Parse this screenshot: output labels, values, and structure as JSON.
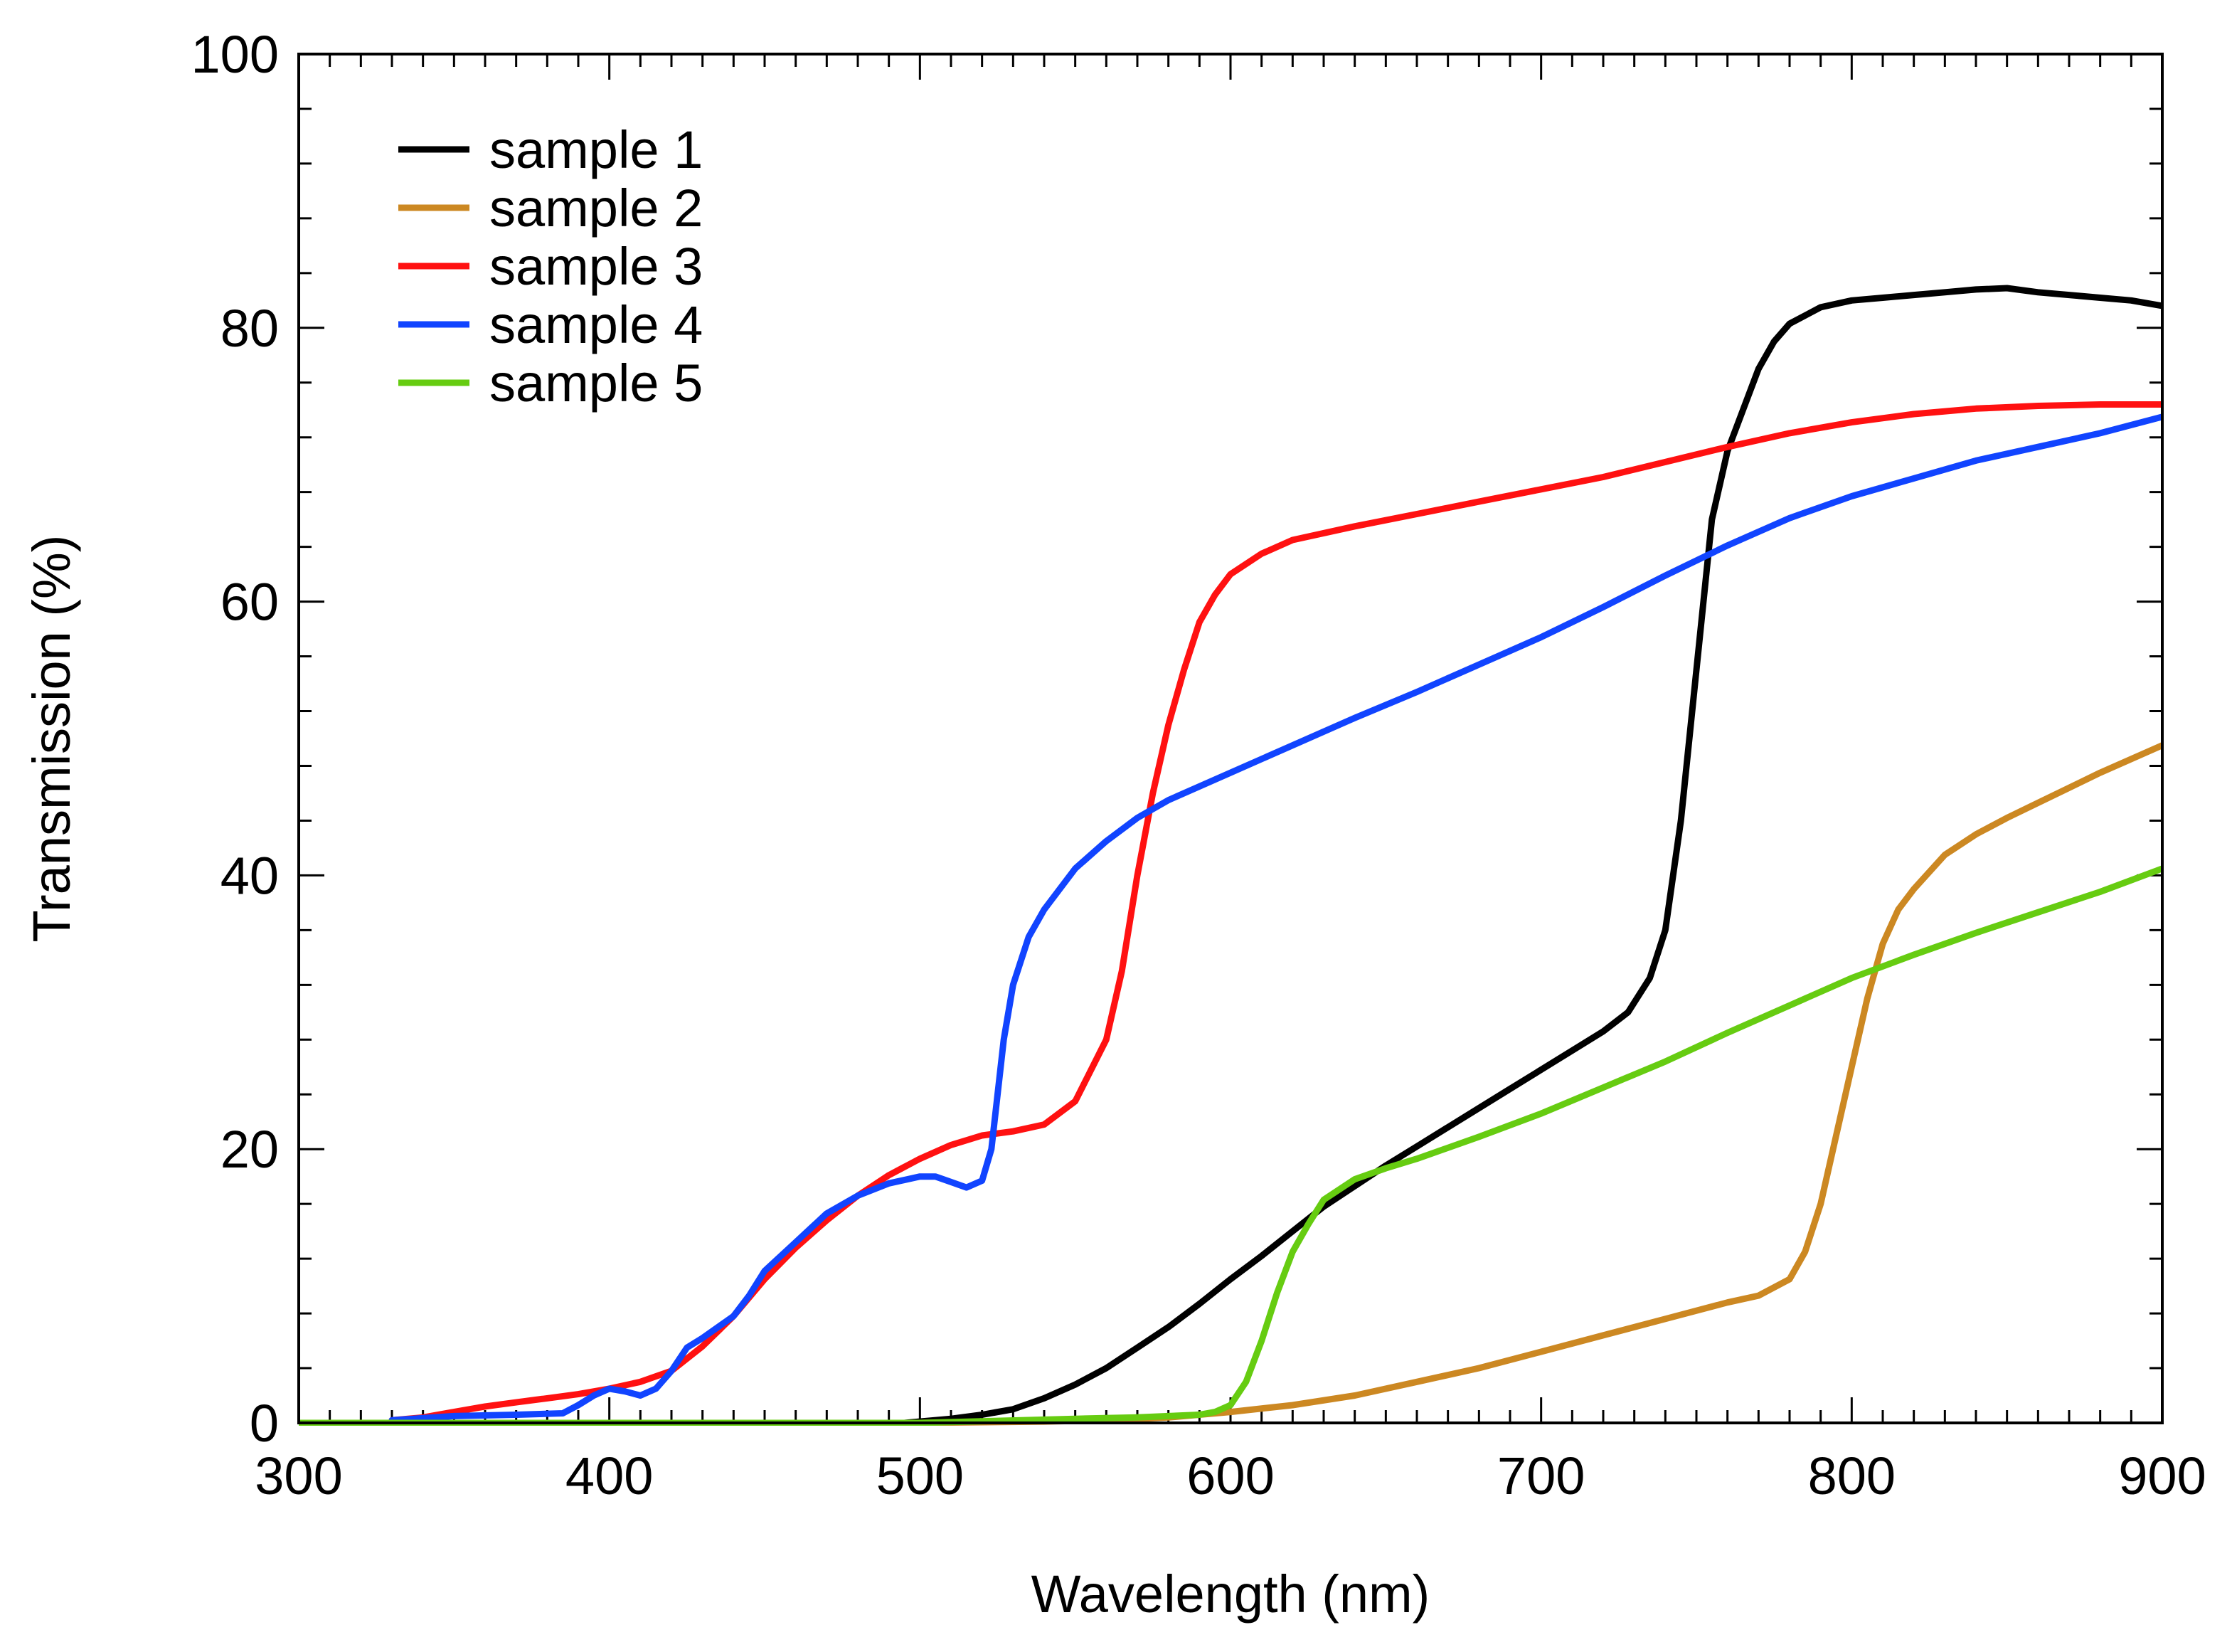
{
  "chart_data": {
    "type": "line",
    "title": "",
    "xlabel": "Wavelength (nm)",
    "ylabel": "Transmission (%)",
    "xlim": [
      300,
      900
    ],
    "ylim": [
      0,
      100
    ],
    "xticks": [
      300,
      400,
      500,
      600,
      700,
      800,
      900
    ],
    "yticks": [
      0,
      20,
      40,
      60,
      80,
      100
    ],
    "xtick_labels": [
      "300",
      "400",
      "500",
      "600",
      "700",
      "800",
      "900"
    ],
    "ytick_labels": [
      "0",
      "20",
      "40",
      "60",
      "80",
      "100"
    ],
    "grid": false,
    "legend_position": "top-left",
    "series": [
      {
        "name": "sample 1",
        "color": "#000000",
        "x": [
          495,
          510,
          520,
          530,
          540,
          550,
          560,
          570,
          580,
          590,
          600,
          610,
          620,
          630,
          640,
          650,
          660,
          670,
          680,
          690,
          700,
          710,
          720,
          728,
          735,
          740,
          745,
          750,
          755,
          760,
          765,
          770,
          775,
          780,
          790,
          800,
          810,
          820,
          830,
          840,
          850,
          860,
          870,
          880,
          890,
          900
        ],
        "y": [
          0,
          0.3,
          0.6,
          1,
          1.8,
          2.8,
          4,
          5.5,
          7,
          8.7,
          10.5,
          12.2,
          14,
          15.8,
          17.3,
          18.8,
          20.2,
          21.6,
          23,
          24.4,
          25.8,
          27.2,
          28.6,
          30,
          32.5,
          36,
          44,
          55,
          66,
          71,
          74,
          77,
          79,
          80.3,
          81.5,
          82,
          82.2,
          82.4,
          82.6,
          82.8,
          82.9,
          82.6,
          82.4,
          82.2,
          82,
          81.6
        ]
      },
      {
        "name": "sample 2",
        "color": "#cc8822",
        "x": [
          300,
          400,
          500,
          540,
          560,
          580,
          600,
          620,
          640,
          660,
          680,
          700,
          720,
          740,
          760,
          770,
          780,
          785,
          790,
          795,
          800,
          805,
          810,
          815,
          820,
          830,
          840,
          850,
          860,
          870,
          880,
          890,
          900
        ],
        "y": [
          0,
          0,
          0,
          0.1,
          0.2,
          0.4,
          0.8,
          1.3,
          2,
          3,
          4,
          5.2,
          6.4,
          7.6,
          8.8,
          9.3,
          10.5,
          12.5,
          16,
          21,
          26,
          31,
          35,
          37.5,
          39,
          41.5,
          43,
          44.2,
          45.3,
          46.4,
          47.5,
          48.5,
          49.5
        ]
      },
      {
        "name": "sample 3",
        "color": "#ff1111",
        "x": [
          330,
          340,
          350,
          360,
          370,
          380,
          390,
          400,
          410,
          420,
          430,
          440,
          450,
          460,
          470,
          480,
          490,
          500,
          510,
          520,
          530,
          540,
          550,
          560,
          565,
          570,
          575,
          580,
          585,
          590,
          595,
          600,
          610,
          620,
          640,
          660,
          680,
          700,
          720,
          740,
          760,
          780,
          800,
          820,
          840,
          860,
          880,
          900
        ],
        "y": [
          0.2,
          0.4,
          0.8,
          1.2,
          1.5,
          1.8,
          2.1,
          2.5,
          3,
          3.8,
          5.6,
          7.8,
          10.5,
          12.8,
          14.8,
          16.6,
          18.1,
          19.3,
          20.3,
          21,
          21.3,
          21.8,
          23.5,
          28,
          33,
          40,
          46,
          51,
          55,
          58.5,
          60.5,
          62,
          63.5,
          64.5,
          65.5,
          66.4,
          67.3,
          68.2,
          69.1,
          70.2,
          71.3,
          72.3,
          73.1,
          73.7,
          74.1,
          74.3,
          74.4,
          74.4
        ]
      },
      {
        "name": "sample 4",
        "color": "#1144ff",
        "x": [
          330,
          350,
          370,
          385,
          390,
          395,
          400,
          405,
          410,
          415,
          420,
          425,
          430,
          440,
          445,
          450,
          460,
          470,
          480,
          490,
          500,
          505,
          510,
          515,
          520,
          523,
          525,
          527,
          530,
          535,
          540,
          550,
          560,
          570,
          580,
          600,
          620,
          640,
          660,
          680,
          700,
          720,
          740,
          760,
          780,
          800,
          820,
          840,
          860,
          880,
          900
        ],
        "y": [
          0.2,
          0.5,
          0.6,
          0.7,
          1.3,
          2,
          2.5,
          2.3,
          2,
          2.5,
          3.8,
          5.5,
          6.2,
          7.8,
          9.3,
          11.1,
          13.2,
          15.3,
          16.6,
          17.5,
          18,
          18,
          17.6,
          17.2,
          17.7,
          20,
          24,
          28,
          32,
          35.5,
          37.5,
          40.5,
          42.5,
          44.2,
          45.5,
          47.5,
          49.5,
          51.5,
          53.4,
          55.4,
          57.4,
          59.6,
          61.9,
          64.1,
          66.1,
          67.7,
          69,
          70.3,
          71.3,
          72.3,
          73.5
        ]
      },
      {
        "name": "sample 5",
        "color": "#66cc11",
        "x": [
          300,
          400,
          500,
          550,
          570,
          580,
          590,
          595,
          600,
          605,
          610,
          615,
          620,
          625,
          630,
          640,
          650,
          660,
          680,
          700,
          720,
          740,
          760,
          780,
          800,
          820,
          840,
          860,
          880,
          900
        ],
        "y": [
          0,
          0,
          0,
          0.3,
          0.4,
          0.5,
          0.6,
          0.8,
          1.3,
          3,
          6,
          9.5,
          12.5,
          14.5,
          16.3,
          17.8,
          18.6,
          19.3,
          20.9,
          22.6,
          24.5,
          26.4,
          28.5,
          30.5,
          32.5,
          34.2,
          35.8,
          37.3,
          38.8,
          40.5
        ]
      }
    ]
  }
}
